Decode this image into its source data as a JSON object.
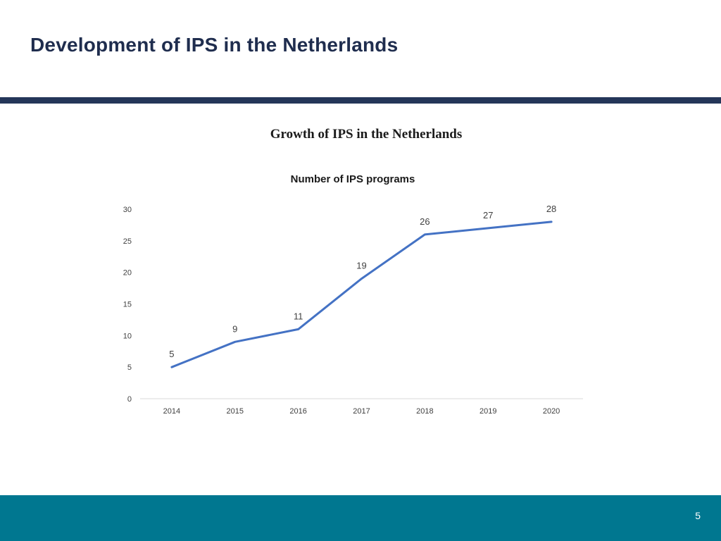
{
  "slide": {
    "title": "Development of IPS in the Netherlands",
    "page_number": "5"
  },
  "colors": {
    "title_text": "#1f2d4e",
    "rule": "#243659",
    "footer": "#007790",
    "line": "#4472c4"
  },
  "chart_data": {
    "type": "line",
    "title": "Growth of IPS in the Netherlands",
    "categories": [
      "2014",
      "2015",
      "2016",
      "2017",
      "2018",
      "2019",
      "2020"
    ],
    "series": [
      {
        "name": "Number of IPS programs",
        "values": [
          5,
          9,
          11,
          19,
          26,
          27,
          28
        ]
      }
    ],
    "data_labels": [
      "5",
      "9",
      "11",
      "19",
      "26",
      "27",
      "28"
    ],
    "y_ticks": [
      "0",
      "5",
      "10",
      "15",
      "20",
      "25",
      "30"
    ],
    "ylim": [
      0,
      30
    ],
    "xlabel": "",
    "ylabel": "",
    "grid": false,
    "legend": "none"
  }
}
